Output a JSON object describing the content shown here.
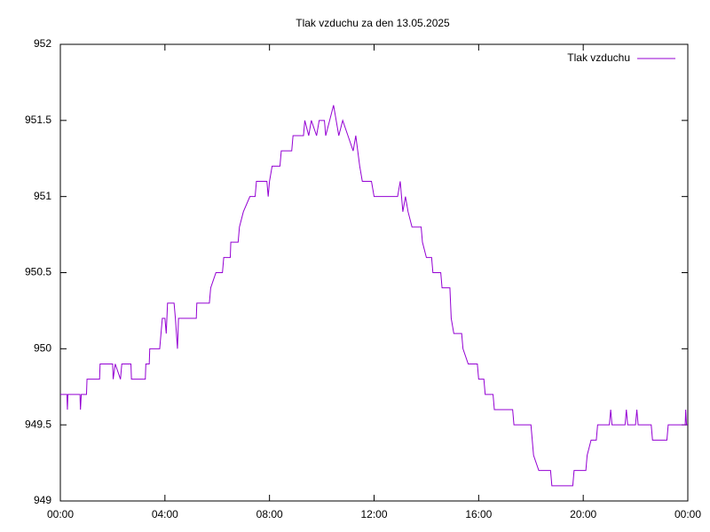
{
  "chart_data": {
    "type": "line",
    "title": "Tlak vzduchu za den 13.05.2025",
    "xlim": [
      0,
      24
    ],
    "xticks": [
      {
        "value": 0,
        "label": "00:00"
      },
      {
        "value": 4,
        "label": "04:00"
      },
      {
        "value": 8,
        "label": "08:00"
      },
      {
        "value": 12,
        "label": "12:00"
      },
      {
        "value": 16,
        "label": "16:00"
      },
      {
        "value": 20,
        "label": "20:00"
      },
      {
        "value": 24,
        "label": "00:00"
      }
    ],
    "ylim": [
      949,
      952
    ],
    "yticks": [
      949,
      949.5,
      950,
      950.5,
      951,
      951.5,
      952
    ],
    "grid": false,
    "legend": "top-right",
    "x": [
      0,
      0.25,
      0.27,
      0.29,
      0.75,
      0.77,
      0.8,
      1.0,
      1.02,
      1.5,
      1.52,
      2.0,
      2.02,
      2.1,
      2.3,
      2.35,
      2.7,
      2.72,
      3.25,
      3.27,
      3.4,
      3.42,
      3.8,
      3.85,
      3.9,
      4.0,
      4.05,
      4.1,
      4.35,
      4.4,
      4.48,
      4.52,
      5.2,
      5.22,
      5.7,
      5.75,
      5.95,
      6.2,
      6.25,
      6.5,
      6.52,
      6.8,
      6.85,
      7.0,
      7.25,
      7.45,
      7.5,
      7.9,
      7.95,
      8.0,
      8.1,
      8.4,
      8.45,
      8.85,
      8.9,
      9.3,
      9.35,
      9.5,
      9.6,
      9.8,
      9.9,
      10.1,
      10.15,
      10.3,
      10.45,
      10.55,
      10.65,
      10.8,
      11.0,
      11.2,
      11.3,
      11.45,
      11.55,
      11.9,
      12.0,
      12.9,
      13.0,
      13.1,
      13.2,
      13.3,
      13.45,
      13.8,
      13.85,
      14.0,
      14.2,
      14.25,
      14.55,
      14.6,
      14.9,
      14.95,
      15.05,
      15.35,
      15.4,
      15.6,
      15.95,
      16.0,
      16.2,
      16.25,
      16.55,
      16.6,
      17.3,
      17.35,
      18.0,
      18.1,
      18.3,
      18.75,
      18.8,
      19.6,
      19.65,
      20.1,
      20.15,
      20.3,
      20.5,
      20.55,
      21.0,
      21.05,
      21.1,
      21.6,
      21.65,
      21.7,
      22.0,
      22.05,
      22.1,
      22.6,
      22.65,
      23.2,
      23.25,
      23.9,
      23.92,
      23.95,
      24.0
    ],
    "series": [
      {
        "name": "Tlak vzduchu",
        "color": "#9400d3",
        "values": [
          949.7,
          949.7,
          949.6,
          949.7,
          949.7,
          949.6,
          949.7,
          949.7,
          949.8,
          949.8,
          949.9,
          949.9,
          949.8,
          949.9,
          949.8,
          949.9,
          949.9,
          949.8,
          949.8,
          949.9,
          949.9,
          950.0,
          950.0,
          950.1,
          950.2,
          950.2,
          950.1,
          950.3,
          950.3,
          950.2,
          950.0,
          950.2,
          950.2,
          950.3,
          950.3,
          950.4,
          950.5,
          950.5,
          950.6,
          950.6,
          950.7,
          950.7,
          950.8,
          950.9,
          951.0,
          951.0,
          951.1,
          951.1,
          951.0,
          951.1,
          951.2,
          951.2,
          951.3,
          951.3,
          951.4,
          951.4,
          951.5,
          951.4,
          951.5,
          951.4,
          951.5,
          951.5,
          951.4,
          951.5,
          951.6,
          951.5,
          951.4,
          951.5,
          951.4,
          951.3,
          951.4,
          951.2,
          951.1,
          951.1,
          951.0,
          951.0,
          951.1,
          950.9,
          951.0,
          950.9,
          950.8,
          950.8,
          950.7,
          950.6,
          950.6,
          950.5,
          950.5,
          950.4,
          950.4,
          950.2,
          950.1,
          950.1,
          950.0,
          949.9,
          949.9,
          949.8,
          949.8,
          949.7,
          949.7,
          949.6,
          949.6,
          949.5,
          949.5,
          949.3,
          949.2,
          949.2,
          949.1,
          949.1,
          949.2,
          949.2,
          949.3,
          949.4,
          949.4,
          949.5,
          949.5,
          949.6,
          949.5,
          949.5,
          949.6,
          949.5,
          949.5,
          949.6,
          949.5,
          949.5,
          949.4,
          949.4,
          949.5,
          949.5,
          949.6,
          949.5,
          949.5
        ]
      }
    ]
  }
}
